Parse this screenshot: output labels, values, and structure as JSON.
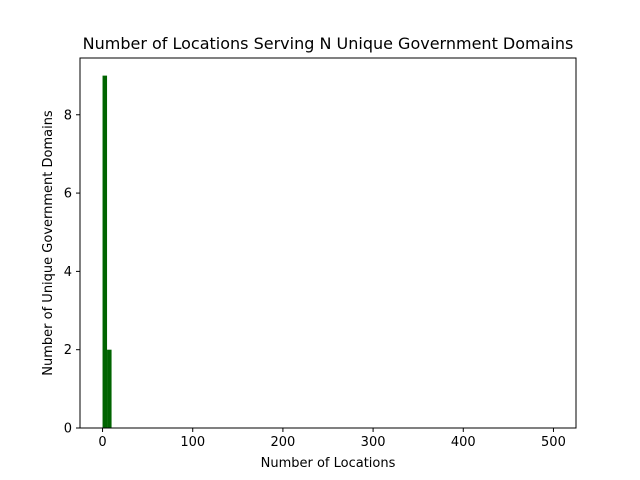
{
  "chart_data": {
    "type": "bar",
    "title": "Number of Locations Serving N Unique Government Domains",
    "xlabel": "Number of Locations",
    "ylabel": "Number of Unique Government Domains",
    "xlim": [
      -25,
      525
    ],
    "ylim": [
      0,
      9.45
    ],
    "xticks": [
      0,
      100,
      200,
      300,
      400,
      500
    ],
    "yticks": [
      0,
      2,
      4,
      6,
      8
    ],
    "bars": [
      {
        "x_start": 0,
        "x_end": 5,
        "value": 9
      },
      {
        "x_start": 5,
        "x_end": 10,
        "value": 2
      }
    ],
    "bar_color": "#006400",
    "grid": false
  }
}
